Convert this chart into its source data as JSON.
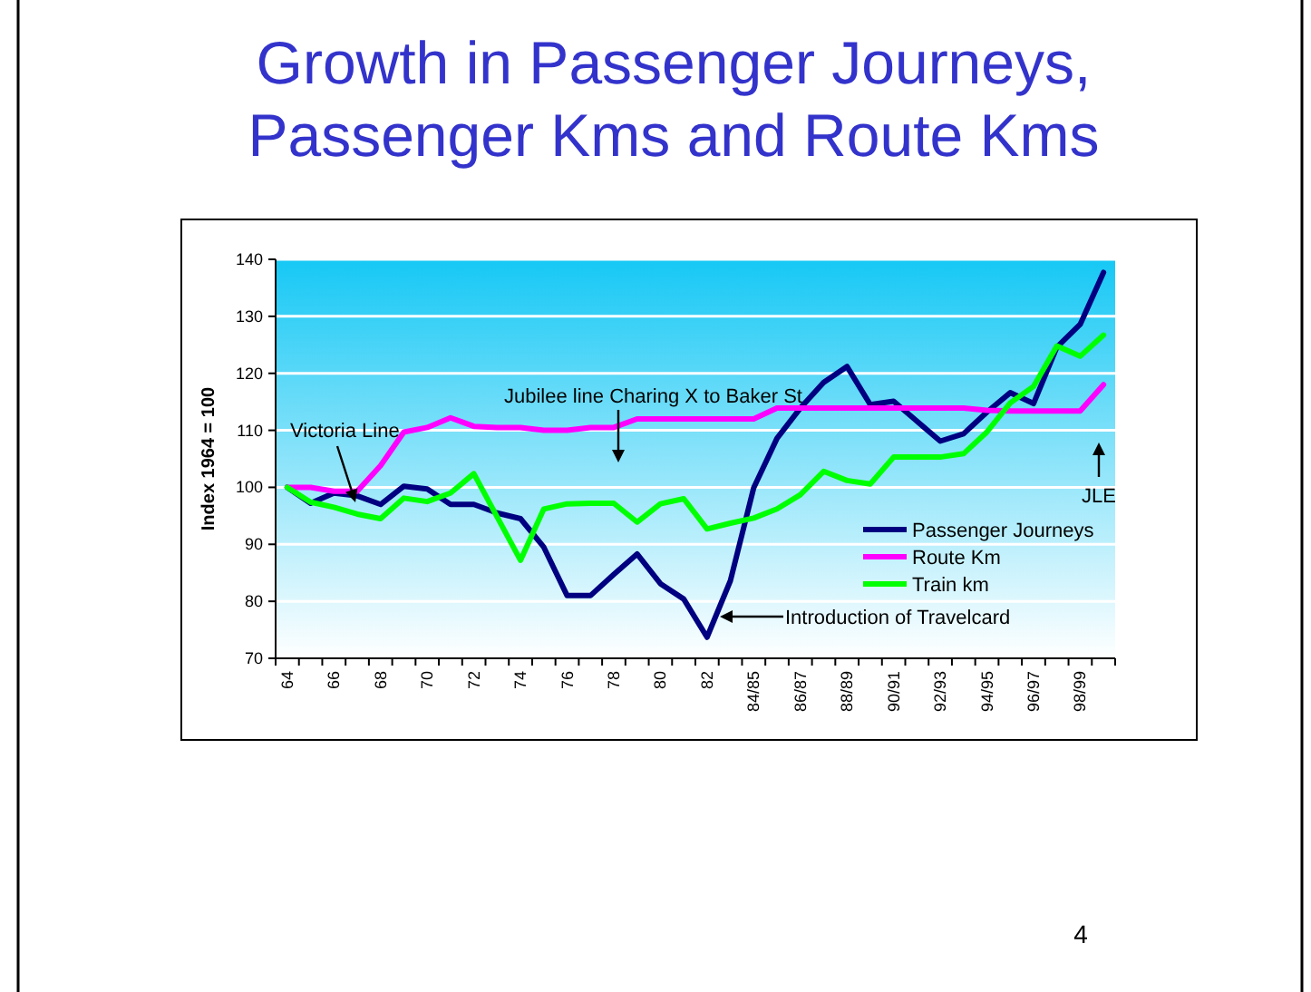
{
  "chart_data": {
    "type": "line",
    "title": "Growth in Passenger Journeys, Passenger Kms and Route Kms",
    "ylabel": "Index 1964 = 100",
    "categories": [
      "64",
      null,
      "66",
      null,
      "68",
      null,
      "70",
      null,
      "72",
      null,
      "74",
      null,
      "76",
      null,
      "78",
      null,
      "80",
      null,
      "82",
      null,
      "84/85",
      null,
      "86/87",
      null,
      "88/89",
      null,
      "90/91",
      null,
      "92/93",
      null,
      "94/95",
      null,
      "96/97",
      null,
      "98/99",
      null
    ],
    "series": [
      {
        "name": "Passenger Journeys",
        "color": "#000080",
        "values": [
          100,
          97.2,
          99,
          98.5,
          97,
          100.2,
          99.7,
          97,
          97,
          95.5,
          94.5,
          89.5,
          81,
          81,
          84.7,
          88.3,
          83.1,
          80.4,
          73.7,
          83.6,
          99.9,
          108.6,
          113.9,
          118.4,
          121.2,
          114.5,
          115.1,
          111.6,
          108.1,
          109.4,
          113.2,
          116.6,
          114.7,
          124.6,
          128.6,
          137.7
        ]
      },
      {
        "name": "Route Km",
        "color": "#ff00ff",
        "values": [
          100,
          100,
          99.3,
          99.3,
          103.8,
          109.7,
          110.5,
          112.2,
          110.7,
          110.5,
          110.5,
          110,
          110,
          110.5,
          110.5,
          112,
          112,
          112,
          112,
          112,
          112,
          113.9,
          113.9,
          113.9,
          113.9,
          113.9,
          113.9,
          113.9,
          113.9,
          113.9,
          113.5,
          113.4,
          113.4,
          113.4,
          113.4,
          118
        ]
      },
      {
        "name": "Train km",
        "color": "#00ff00",
        "values": [
          100,
          97.4,
          96.5,
          95.3,
          94.5,
          98.1,
          97.5,
          99,
          102.4,
          94.8,
          87.2,
          96.2,
          97.1,
          97.2,
          97.2,
          93.9,
          97.1,
          98,
          92.7,
          93.7,
          94.6,
          96.2,
          98.7,
          102.8,
          101.2,
          100.6,
          105.3,
          105.3,
          105.3,
          105.9,
          109.7,
          114.8,
          117.7,
          124.8,
          123,
          126.7
        ]
      }
    ],
    "ylim": [
      70,
      140
    ],
    "yticks": [
      70,
      80,
      90,
      100,
      110,
      120,
      130,
      140
    ],
    "grid": "y",
    "legend": "bottom right",
    "line_style": "solid",
    "marker": "none",
    "annotations": [
      "Victoria Line",
      "Jubilee line Charing X to Baker St",
      "Introduction of Travelcard",
      "JLE",
      "4"
    ]
  }
}
